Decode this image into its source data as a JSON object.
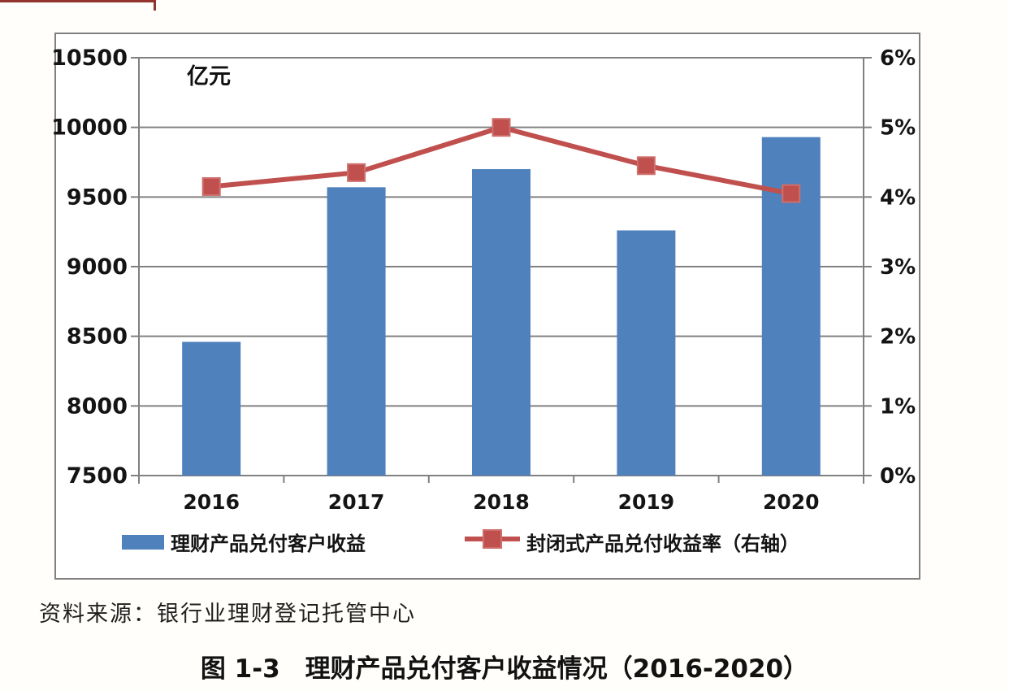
{
  "chart_data": {
    "type": "combo-bar-line",
    "categories": [
      "2016",
      "2017",
      "2018",
      "2019",
      "2020"
    ],
    "series": [
      {
        "name": "理财产品兑付客户收益",
        "type": "bar",
        "axis": "left",
        "color": "#4F81BD",
        "values": [
          8460,
          9570,
          9700,
          9260,
          9930
        ]
      },
      {
        "name": "封闭式产品兑付收益率（右轴）",
        "type": "line",
        "axis": "right",
        "color": "#C0504D",
        "marker": "square",
        "values": [
          4.15,
          4.35,
          5.0,
          4.45,
          4.05
        ]
      }
    ],
    "left_axis": {
      "unit_label": "亿元",
      "min": 7500,
      "max": 10500,
      "step": 500,
      "ticks": [
        "10500",
        "10000",
        "9500",
        "9000",
        "8500",
        "8000",
        "7500"
      ]
    },
    "right_axis": {
      "min": 0,
      "max": 6,
      "step": 1,
      "ticks": [
        "6%",
        "5%",
        "4%",
        "3%",
        "2%",
        "1%",
        "0%"
      ]
    },
    "grid": true,
    "legend_position": "bottom",
    "colors": {
      "bar": "#4F81BD",
      "line": "#C0504D",
      "marker_edge": "#CE6F6D",
      "grid": "#818181",
      "frame": "#808080",
      "text": "#141414",
      "plot_bg": "#ffffff"
    }
  },
  "source_note": "资料来源：银行业理财登记托管中心",
  "caption": "图 1-3　理财产品兑付客户收益情况（2016-2020）"
}
